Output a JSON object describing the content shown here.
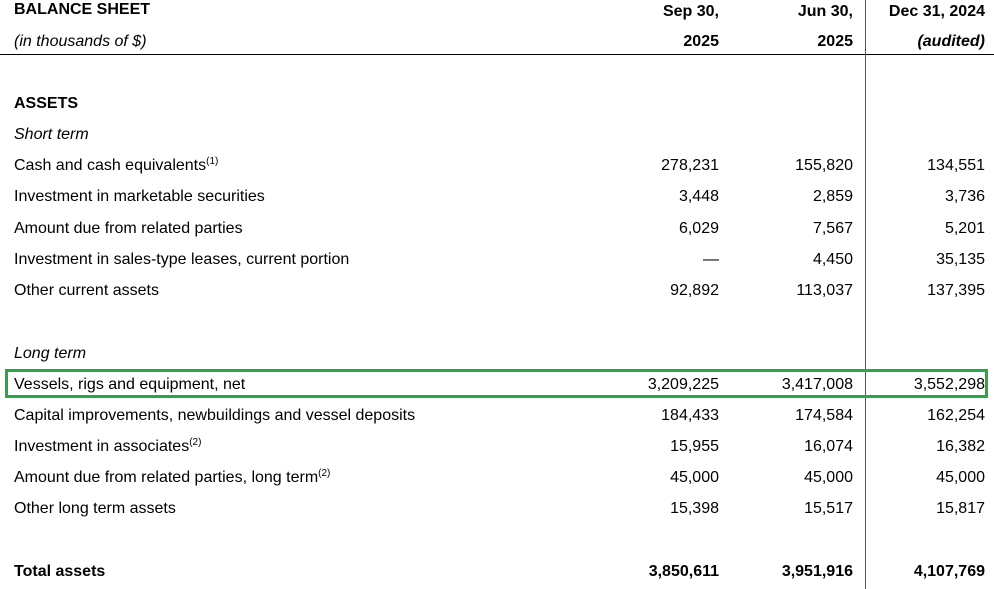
{
  "header": {
    "title": "BALANCE SHEET",
    "subtitle": "(in thousands of $)",
    "columns": [
      {
        "line1": "Sep 30,",
        "line2": "2025"
      },
      {
        "line1": "Jun 30,",
        "line2": "2025"
      },
      {
        "line1": "Dec 31, 2024",
        "line2": "(audited)"
      }
    ]
  },
  "sections": {
    "assets": "ASSETS",
    "short_term": "Short term",
    "long_term": "Long term"
  },
  "rows": [
    {
      "label": "Cash and cash equivalents",
      "note": "(1)",
      "values": [
        "278,231",
        "155,820",
        "134,551"
      ]
    },
    {
      "label": "Investment in marketable securities",
      "note": "",
      "values": [
        "3,448",
        "2,859",
        "3,736"
      ]
    },
    {
      "label": "Amount due from related parties",
      "note": "",
      "values": [
        "6,029",
        "7,567",
        "5,201"
      ]
    },
    {
      "label": "Investment in sales-type leases, current portion",
      "note": "",
      "values": [
        "—",
        "4,450",
        "35,135"
      ]
    },
    {
      "label": "Other current assets",
      "note": "",
      "values": [
        "92,892",
        "113,037",
        "137,395"
      ]
    },
    {
      "label": "Vessels, rigs and equipment, net",
      "note": "",
      "values": [
        "3,209,225",
        "3,417,008",
        "3,552,298"
      ]
    },
    {
      "label": "Capital improvements, newbuildings and vessel deposits",
      "note": "",
      "values": [
        "184,433",
        "174,584",
        "162,254"
      ]
    },
    {
      "label": "Investment in associates",
      "note": "(2)",
      "values": [
        "15,955",
        "16,074",
        "16,382"
      ]
    },
    {
      "label": "Amount due from related parties, long term",
      "note": "(2)",
      "values": [
        "45,000",
        "45,000",
        "45,000"
      ]
    },
    {
      "label": "Other long term assets",
      "note": "",
      "values": [
        "15,398",
        "15,517",
        "15,817"
      ]
    }
  ],
  "total": {
    "label": "Total assets",
    "values": [
      "3,850,611",
      "3,951,916",
      "4,107,769"
    ]
  },
  "colors": {
    "highlight": "#27a844"
  }
}
